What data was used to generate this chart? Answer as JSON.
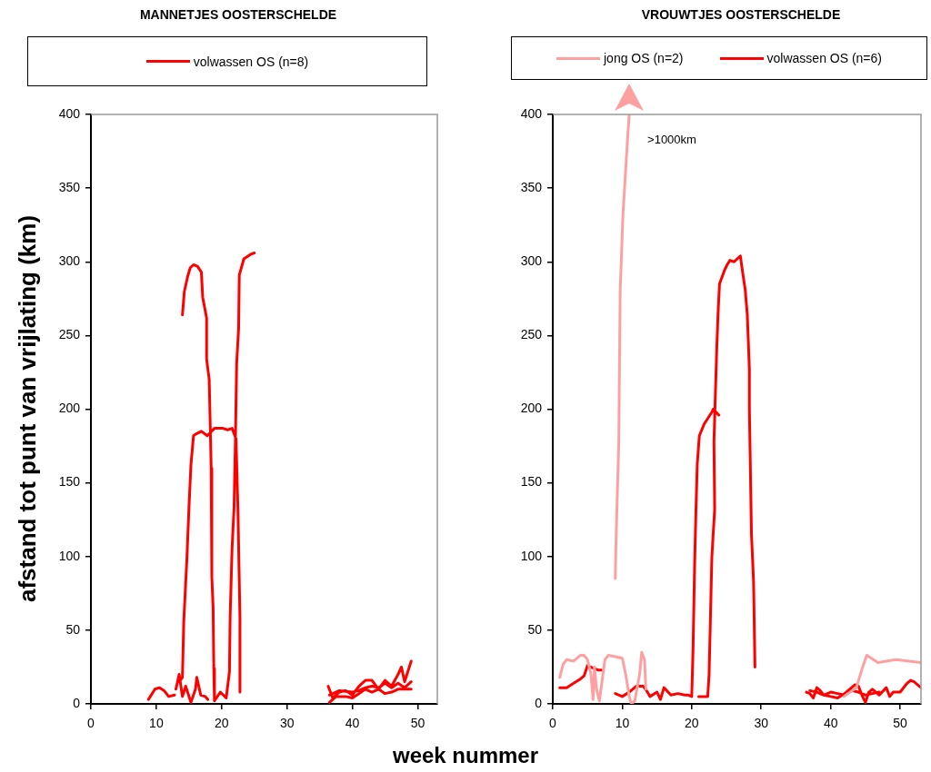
{
  "chart_data": [
    {
      "type": "line",
      "title": "MANNETJES  OOSTERSCHELDE",
      "ylabel": "afstand tot punt van vrijlating (km)",
      "xlim": [
        0,
        53
      ],
      "xticks": [
        0,
        10,
        20,
        30,
        40,
        50
      ],
      "ylim": [
        0,
        400
      ],
      "yticks": [
        0,
        50,
        100,
        150,
        200,
        250,
        300,
        350,
        400
      ],
      "grid": false,
      "legend": "top",
      "marker": "none",
      "line_style": "solid",
      "series": [
        {
          "name": "volwassen OS (n=8)",
          "color": "#ff0000",
          "x": [
            8.8,
            9.8,
            10.5,
            11.2,
            11.9,
            12.8,
            null,
            14.0,
            14.3,
            14.8,
            15.2,
            15.7,
            16.3,
            16.9,
            17.1,
            17.7,
            17.7,
            18.1,
            18.4,
            18.5,
            18.7,
            18.8,
            18.9,
            19.8,
            20.7,
            21.2,
            21.3,
            21.6,
            21.9,
            22.1,
            22.3,
            22.6,
            22.7,
            23.4,
            24.4,
            25.0,
            null,
            13.5,
            14.0,
            14.2,
            14.7,
            15.0,
            15.3,
            15.7,
            16.0,
            16.9,
            17.8,
            18.9,
            20.2,
            20.9,
            21.6,
            22.2,
            22.5,
            22.8,
            22.8,
            null,
            13.0,
            13.5,
            14.0,
            14.5,
            15.3,
            16.0,
            16.2,
            16.8,
            17.5,
            17.9,
            null,
            36.3,
            37.0,
            38.0,
            39.0,
            40.0,
            41.0,
            42.0,
            43.0,
            44.0,
            45.0,
            46.0,
            47.0,
            47.5,
            48.0,
            49.0,
            null,
            36.5,
            37.5,
            39.0,
            40.0,
            41.0,
            42.0,
            43.0,
            44.0,
            45.0,
            46.0,
            47.0,
            48.0,
            49.0,
            null,
            36.5,
            38.0,
            40.0,
            41.0,
            42.0,
            43.0,
            44.0,
            45.0,
            46.0,
            47.0,
            48.0,
            49.0
          ],
          "values": [
            3,
            10,
            11,
            9,
            5,
            6,
            null,
            264,
            280,
            290,
            296,
            298,
            297,
            293,
            276,
            262,
            234,
            220,
            160,
            86,
            65,
            24,
            2,
            8,
            4,
            22,
            59,
            106,
            133,
            177,
            231,
            255,
            291,
            302,
            305,
            306,
            null,
            15,
            18,
            55,
            100,
            133,
            162,
            182,
            183,
            185,
            182,
            187,
            187,
            186,
            187,
            180,
            131,
            59,
            8,
            null,
            10,
            20,
            5,
            12,
            1,
            10,
            18,
            6,
            5,
            3,
            null,
            12,
            4,
            8,
            9,
            6,
            12,
            16,
            16,
            10,
            16,
            12,
            20,
            25,
            15,
            29,
            null,
            1,
            5,
            5,
            4,
            7,
            10,
            8,
            10,
            7,
            8,
            10,
            10,
            10,
            null,
            6,
            9,
            8,
            9,
            11,
            12,
            11,
            14,
            11,
            14,
            11,
            15
          ]
        }
      ]
    },
    {
      "type": "line",
      "title": "VROUWTJES OOSTERSCHELDE",
      "xlabel": "week nummer",
      "xlim": [
        0,
        53
      ],
      "xticks": [
        0,
        10,
        20,
        30,
        40,
        50
      ],
      "ylim": [
        0,
        400
      ],
      "yticks": [
        0,
        50,
        100,
        150,
        200,
        250,
        300,
        350,
        400
      ],
      "grid": false,
      "legend": "top",
      "marker": "none",
      "line_style": "solid",
      "annotations": [
        {
          "text": ">1000km",
          "x": 11,
          "y": 400
        }
      ],
      "series": [
        {
          "name": "jong OS (n=2)",
          "color": "#ffa0a0",
          "x": [
            1.0,
            1.5,
            2.0,
            3.0,
            3.5,
            4.0,
            4.5,
            5.0,
            5.5,
            5.8,
            6.0,
            6.3,
            6.7,
            7.0,
            7.5,
            8.0,
            9.0,
            10.0,
            10.5,
            11.0,
            11.3,
            11.8,
            12.5,
            12.8,
            13.2,
            13.4,
            null,
            9.0,
            9.1,
            9.3,
            9.5,
            9.7,
            10.1,
            10.5,
            10.8,
            11.0,
            null,
            41.9,
            43.7,
            44.6,
            45.2,
            46.8,
            49.4,
            53.0
          ],
          "values": [
            18,
            27,
            30,
            29,
            31,
            33,
            33,
            30,
            20,
            3,
            25,
            10,
            2,
            12,
            30,
            33,
            32,
            31,
            20,
            5,
            0,
            2,
            20,
            35,
            30,
            10,
            null,
            85,
            110,
            144,
            177,
            280,
            332,
            363,
            386,
            400,
            null,
            5,
            11,
            25,
            33,
            28,
            30,
            28
          ]
        },
        {
          "name": "volwassen OS  (n=6)",
          "color": "#ff0000",
          "x": [
            1.0,
            2.0,
            3.0,
            4.0,
            4.5,
            5.0,
            6.0,
            6.5,
            7.0,
            null,
            9.0,
            10.0,
            11.0,
            12.0,
            13.0,
            13.5,
            14.0,
            15.0,
            15.5,
            16.0,
            17.0,
            18.0,
            19.0,
            19.5,
            20.0,
            20.2,
            20.4,
            20.6,
            20.8,
            21.1,
            21.8,
            22.9,
            23.1,
            23.9,
            null,
            21.0,
            22.3,
            22.5,
            22.7,
            22.9,
            23.3,
            23.2,
            23.6,
            23.8,
            24.0,
            24.7,
            25.1,
            25.5,
            26.1,
            27.0,
            27.2,
            27.7,
            28.0,
            28.3,
            28.3,
            28.6,
            28.9,
            29.1,
            null,
            36.5,
            37.0,
            37.5,
            38.0,
            38.5,
            39.0,
            40.0,
            41.0,
            42.0,
            43.0,
            43.5,
            44.0,
            44.5,
            45.0,
            45.5,
            46.0,
            47.0,
            48.0,
            48.5,
            49.0,
            50.0,
            51.0,
            51.5,
            52.0,
            53.0,
            null,
            37.0,
            38.0,
            39.0,
            40.0,
            41.0,
            42.0,
            43.0,
            44.0,
            45.0,
            46.0,
            47.0
          ],
          "values": [
            11,
            11,
            14,
            17,
            19,
            26,
            24,
            23,
            23,
            null,
            7,
            5,
            8,
            12,
            12,
            9,
            5,
            8,
            3,
            11,
            6,
            7,
            6,
            6,
            5,
            39,
            91,
            130,
            163,
            182,
            190,
            198,
            200,
            196,
            null,
            5,
            5,
            20,
            60,
            100,
            132,
            178,
            241,
            266,
            285,
            294,
            298,
            301,
            300,
            304,
            297,
            281,
            264,
            227,
            200,
            115,
            83,
            25,
            null,
            8,
            7,
            4,
            11,
            9,
            6,
            5,
            4,
            7,
            11,
            13,
            12,
            6,
            1,
            8,
            10,
            6,
            11,
            5,
            8,
            8,
            14,
            16,
            15,
            11,
            null,
            9,
            8,
            6,
            8,
            7,
            6,
            9,
            8,
            6,
            7,
            8
          ]
        }
      ]
    }
  ]
}
